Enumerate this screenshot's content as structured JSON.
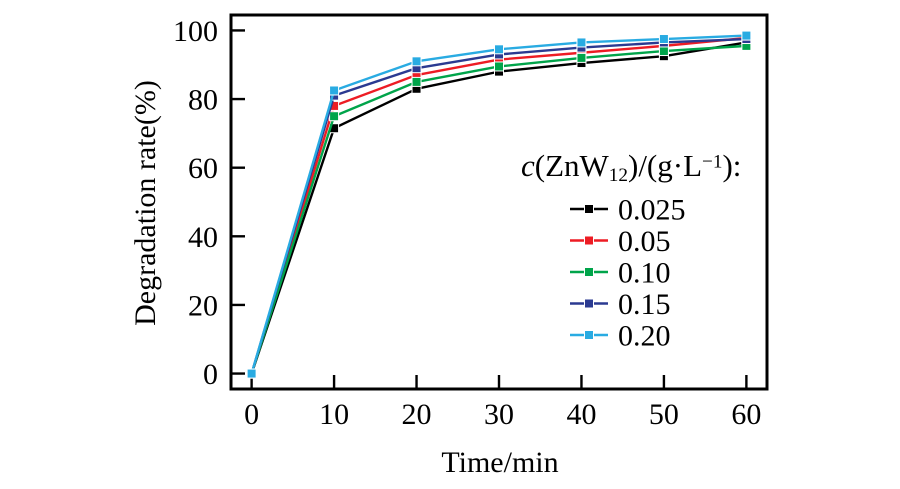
{
  "chart_data": {
    "type": "line",
    "title": "",
    "xlabel": "Time/min",
    "ylabel": "Degradation rate(%)",
    "x": [
      0,
      10,
      20,
      30,
      40,
      50,
      60
    ],
    "x_ticks": [
      0,
      10,
      20,
      30,
      40,
      50,
      60
    ],
    "y_ticks": [
      0,
      20,
      40,
      60,
      80,
      100
    ],
    "xlim": [
      -2.5,
      62.5
    ],
    "ylim": [
      -4.5,
      104.5
    ],
    "grid": false,
    "marker": "square",
    "legend": {
      "position": "inside-right-middle",
      "title_plain": "c(ZnW12)/(g·L−1):",
      "title_parts": {
        "var": "c",
        "open": "(ZnW",
        "sub": "12",
        "mid": ")/(g·L",
        "sup": "−1",
        "close": "):"
      }
    },
    "series": [
      {
        "label": "0.025",
        "color": "#000000",
        "values": [
          0,
          71.5,
          83.0,
          88.0,
          90.5,
          92.5,
          96.5
        ]
      },
      {
        "label": "0.05",
        "color": "#ed1c24",
        "values": [
          0,
          78.0,
          87.0,
          91.5,
          93.5,
          95.5,
          97.8
        ]
      },
      {
        "label": "0.10",
        "color": "#00a44a",
        "values": [
          0,
          75.0,
          85.0,
          89.5,
          92.0,
          94.0,
          95.5
        ]
      },
      {
        "label": "0.15",
        "color": "#2b3a91",
        "values": [
          0,
          81.0,
          89.0,
          93.0,
          95.0,
          96.5,
          97.5
        ]
      },
      {
        "label": "0.20",
        "color": "#29abe2",
        "values": [
          0,
          82.5,
          91.0,
          94.5,
          96.5,
          97.5,
          98.5
        ]
      }
    ]
  }
}
